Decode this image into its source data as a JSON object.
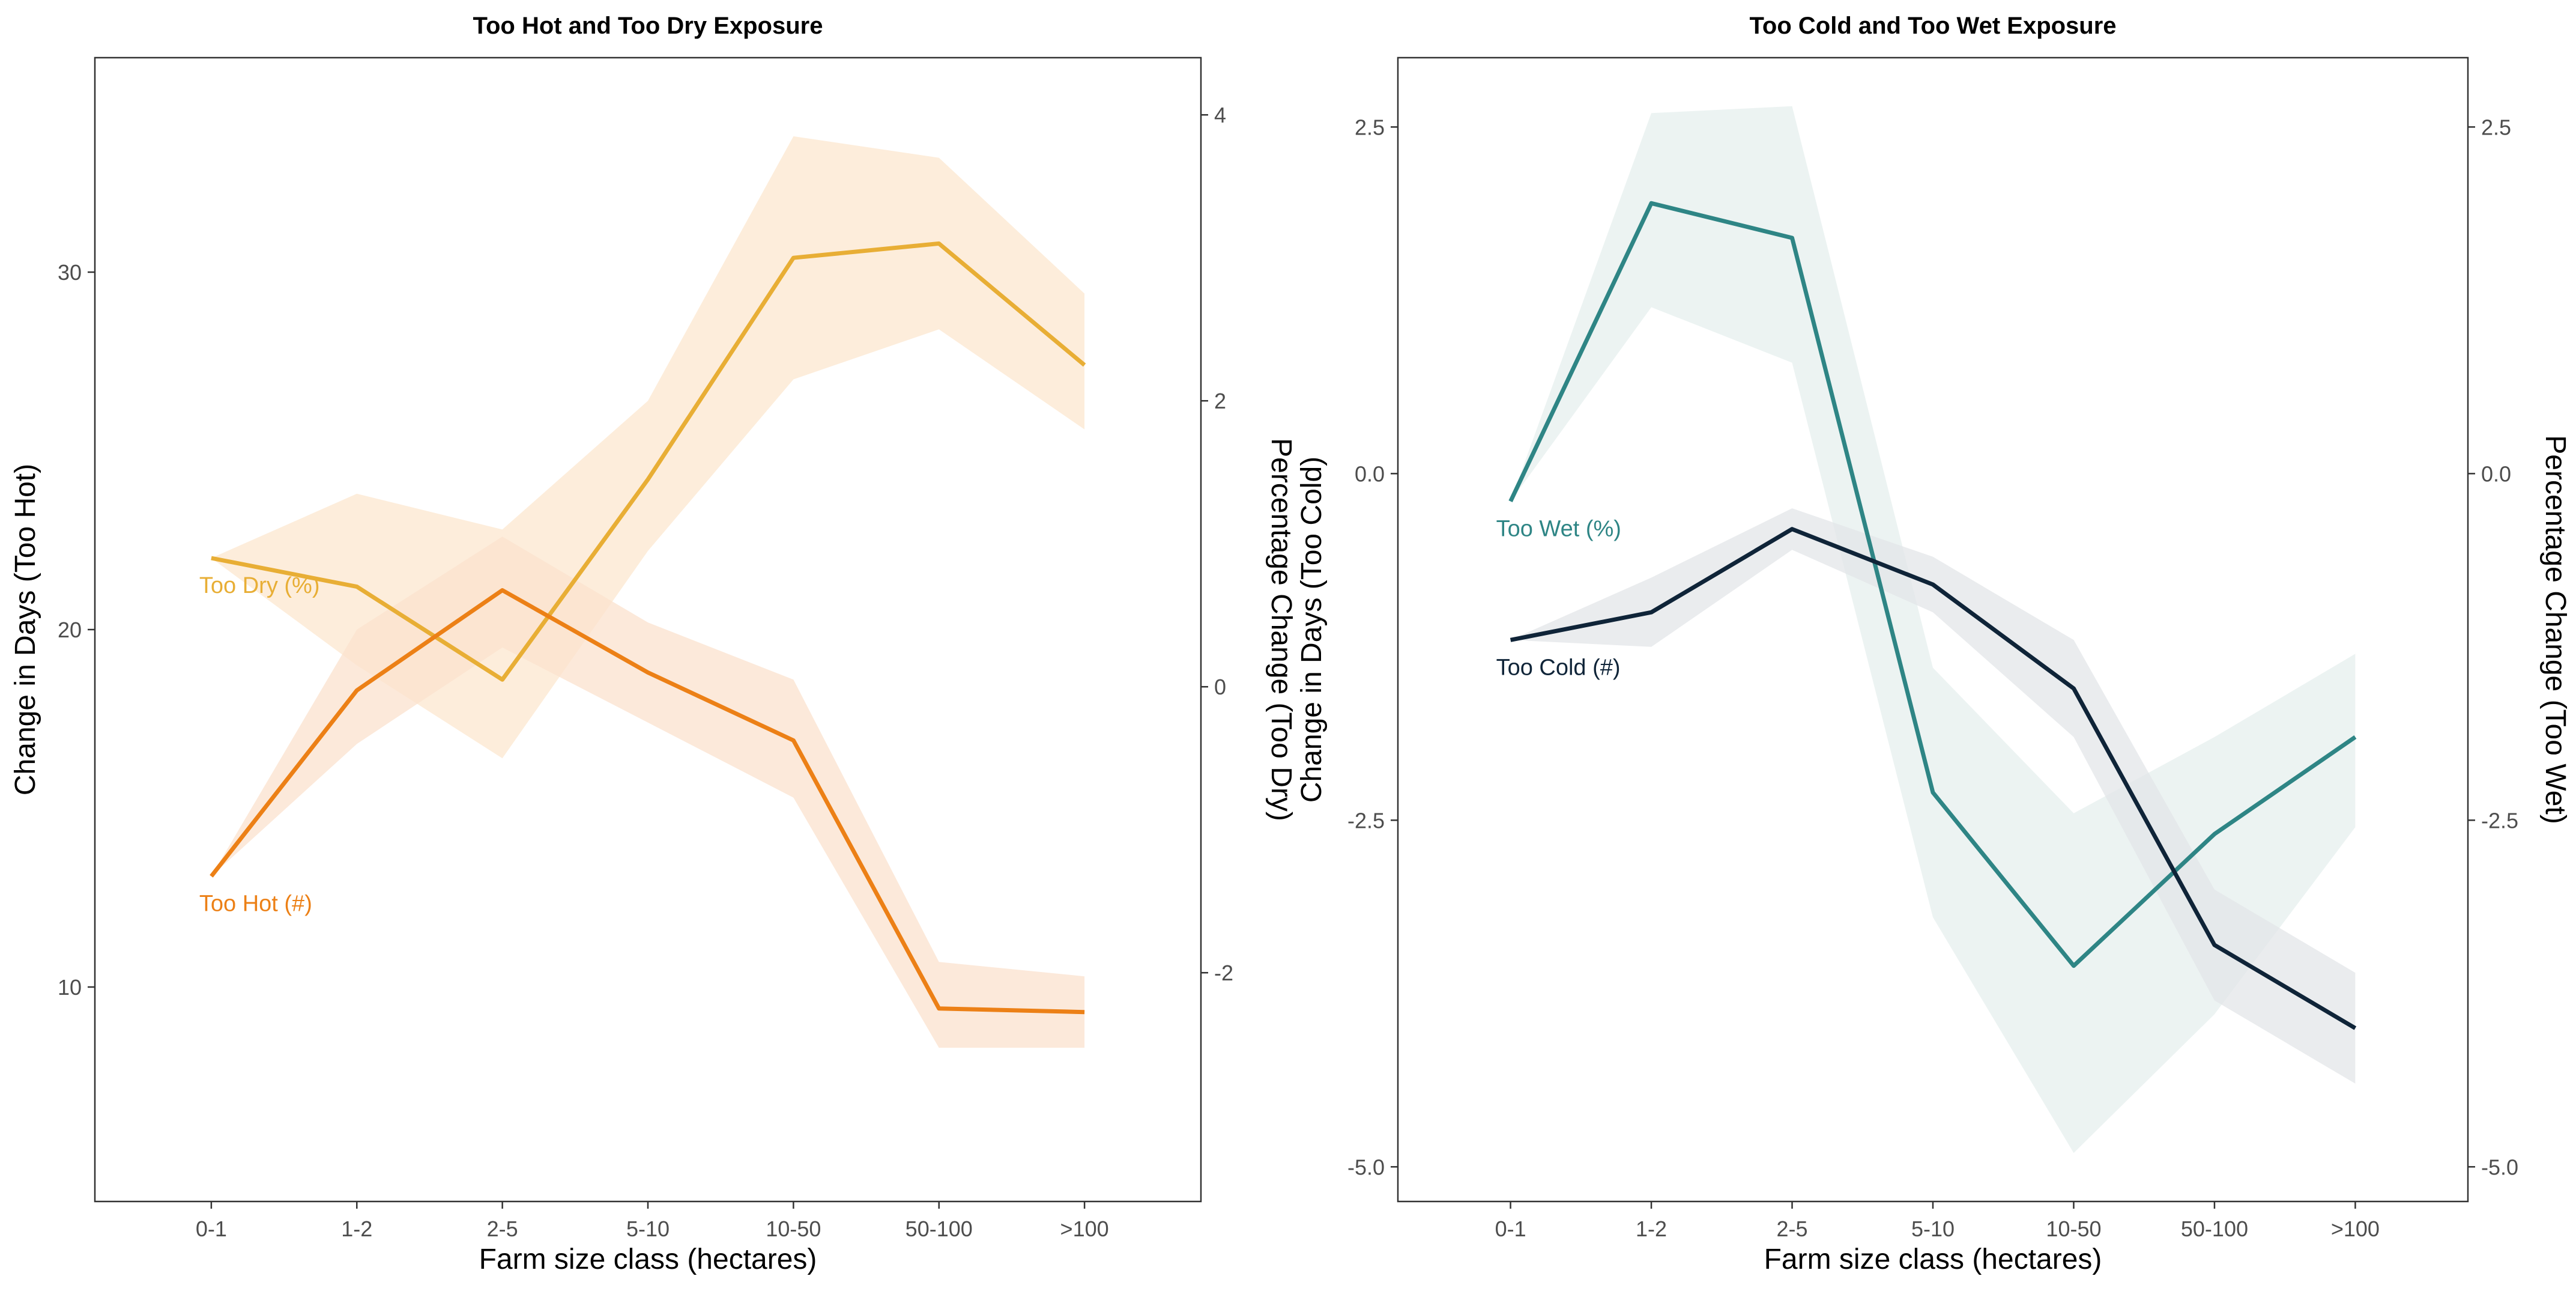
{
  "chart_data": [
    {
      "type": "line",
      "title": "Too Hot and Too Dry Exposure",
      "xlabel": "Farm size class (hectares)",
      "ylabel": "Change in Days (Too Hot)",
      "ylabel_right": "Percentage Change (Too Dry)",
      "categories": [
        "0-1",
        "1-2",
        "2-5",
        "5-10",
        "10-50",
        "50-100",
        ">100"
      ],
      "ylim": [
        4,
        36
      ],
      "yticks": [
        10,
        20,
        30
      ],
      "ylim_right": [
        -3.6,
        4.4
      ],
      "yticks_right": [
        -2,
        0,
        2,
        4
      ],
      "grid": false,
      "legend": "none",
      "series": [
        {
          "name": "Too Dry (%)",
          "axis": "right",
          "color": "#E8AE35",
          "band_color": "#FCE7CF",
          "values": [
            0.9,
            0.7,
            0.05,
            1.45,
            3.0,
            3.1,
            2.25
          ],
          "lower": [
            0.9,
            0.15,
            -0.5,
            0.95,
            2.15,
            2.5,
            1.8
          ],
          "upper": [
            0.9,
            1.35,
            1.1,
            2.0,
            3.85,
            3.7,
            2.75
          ]
        },
        {
          "name": "Too Hot (#)",
          "axis": "left",
          "color": "#EC8016",
          "band_color": "#FBE1CE",
          "values": [
            13.1,
            18.3,
            21.1,
            18.8,
            16.9,
            9.4,
            9.3
          ],
          "lower": [
            13.1,
            16.8,
            19.5,
            17.4,
            15.3,
            8.3,
            8.3
          ],
          "upper": [
            13.1,
            20.0,
            22.6,
            20.2,
            18.6,
            10.7,
            10.3
          ]
        }
      ],
      "annotations": [
        {
          "text": "Too Dry (%)",
          "series": "Too Dry (%)"
        },
        {
          "text": "Too Hot (#)",
          "series": "Too Hot (#)"
        }
      ]
    },
    {
      "type": "line",
      "title": "Too Cold and Too Wet Exposure",
      "xlabel": "Farm size class (hectares)",
      "ylabel": "Change in Days (Too Cold)",
      "ylabel_right": "Percentage Change (Too Wet)",
      "categories": [
        "0-1",
        "1-2",
        "2-5",
        "5-10",
        "10-50",
        "50-100",
        ">100"
      ],
      "ylim": [
        -5.25,
        3.0
      ],
      "yticks": [
        -5.0,
        -2.5,
        0.0,
        2.5
      ],
      "ylim_right": [
        -5.25,
        3.0
      ],
      "yticks_right": [
        -5.0,
        -2.5,
        0.0,
        2.5
      ],
      "tick_format": "1dp",
      "grid": false,
      "legend": "none",
      "series": [
        {
          "name": "Too Wet (%)",
          "axis": "right",
          "color": "#2E8585",
          "band_color": "#E6EFEE",
          "values": [
            -0.2,
            1.95,
            1.7,
            -2.3,
            -3.55,
            -2.6,
            -1.9
          ],
          "lower": [
            -0.2,
            1.2,
            0.8,
            -3.2,
            -4.9,
            -3.9,
            -2.55
          ],
          "upper": [
            -0.2,
            2.6,
            2.65,
            -1.4,
            -2.45,
            -1.9,
            -1.3
          ]
        },
        {
          "name": "Too Cold (#)",
          "axis": "left",
          "color": "#0F2438",
          "band_color": "#E3E5E8",
          "values": [
            -1.2,
            -1.0,
            -0.4,
            -0.8,
            -1.55,
            -3.4,
            -4.0
          ],
          "lower": [
            -1.2,
            -1.25,
            -0.55,
            -1.0,
            -1.9,
            -3.8,
            -4.4
          ],
          "upper": [
            -1.2,
            -0.75,
            -0.25,
            -0.6,
            -1.2,
            -3.0,
            -3.6
          ]
        }
      ],
      "annotations": [
        {
          "text": "Too Wet (%)",
          "series": "Too Wet (%)"
        },
        {
          "text": "Too Cold (#)",
          "series": "Too Cold (#)"
        }
      ]
    }
  ]
}
